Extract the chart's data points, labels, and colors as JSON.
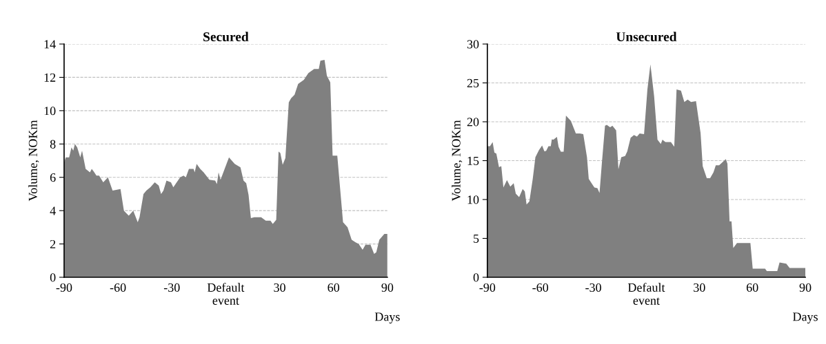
{
  "chart_data": [
    {
      "type": "area",
      "title": "Secured",
      "ylabel": "Volume, NOKm",
      "xlabel": "Days",
      "color": "#808080",
      "grid": "y",
      "xlim": [
        -90,
        90
      ],
      "xticks": [
        -90,
        -60,
        -30,
        {
          "value": 0,
          "label": "Default\nevent"
        },
        30,
        60,
        90
      ],
      "ylim": [
        0,
        14
      ],
      "yticks": [
        0,
        2,
        4,
        6,
        8,
        10,
        12,
        14
      ],
      "x": [
        -90,
        -89.1,
        -87.2,
        -85.9,
        -84.9,
        -84,
        -82.7,
        -81,
        -80,
        -78,
        -75.6,
        -74.6,
        -73.5,
        -72,
        -70.5,
        -68.2,
        -65.6,
        -63,
        -58.6,
        -56.7,
        -54,
        -51.5,
        -49,
        -48,
        -45.8,
        -44.2,
        -42,
        -39.5,
        -37.3,
        -36,
        -34.7,
        -33,
        -30.5,
        -29.2,
        -27.3,
        -25.4,
        -23.5,
        -22.2,
        -20.5,
        -17.9,
        -17.3,
        -16.2,
        -14.2,
        -12.3,
        -9.1,
        -5.9,
        -4.9,
        -4,
        -2.9,
        -0.8,
        1.8,
        5,
        8.2,
        9.9,
        11.4,
        12.7,
        14,
        15.9,
        19.7,
        22.3,
        24.9,
        26.2,
        28.1,
        29.4,
        30.4,
        31.7,
        33.2,
        35.1,
        36.4,
        38.3,
        40.3,
        43.5,
        46,
        49.2,
        51.8,
        52.7,
        55,
        56.3,
        58.2,
        59.5,
        62.1,
        65.3,
        67.8,
        70.1,
        72.3,
        74,
        76.2,
        77.8,
        80.6,
        82.6,
        83.8,
        85.5,
        88.3,
        90
      ],
      "values": [
        6.9,
        7.2,
        7.2,
        7.8,
        7.6,
        8.0,
        7.8,
        7.2,
        7.6,
        6.5,
        6.3,
        6.5,
        6.35,
        6.1,
        6.1,
        5.7,
        6.0,
        5.2,
        5.3,
        4.0,
        3.7,
        4.0,
        3.3,
        3.6,
        5.0,
        5.2,
        5.4,
        5.7,
        5.5,
        5.0,
        5.2,
        5.8,
        5.7,
        5.4,
        5.7,
        6.0,
        6.1,
        6.0,
        6.5,
        6.5,
        6.3,
        6.8,
        6.5,
        6.3,
        5.85,
        5.8,
        5.6,
        6.3,
        5.85,
        6.45,
        7.2,
        6.8,
        6.6,
        5.8,
        5.65,
        4.95,
        3.55,
        3.6,
        3.6,
        3.4,
        3.4,
        3.2,
        3.45,
        7.55,
        7.45,
        6.75,
        7.15,
        10.5,
        10.75,
        10.95,
        11.6,
        11.85,
        12.25,
        12.5,
        12.5,
        13.0,
        13.05,
        12.1,
        11.7,
        7.3,
        7.3,
        3.3,
        3.0,
        2.25,
        2.1,
        2.0,
        1.65,
        1.95,
        1.95,
        1.4,
        1.5,
        2.25,
        2.6,
        2.6
      ]
    },
    {
      "type": "area",
      "title": "Unsecured",
      "ylabel": "Volume, NOKm",
      "xlabel": "Days",
      "color": "#808080",
      "grid": "y",
      "xlim": [
        -90,
        90
      ],
      "xticks": [
        -90,
        -60,
        -30,
        {
          "value": 0,
          "label": "Default\nevent"
        },
        30,
        60,
        90
      ],
      "ylim": [
        0,
        30
      ],
      "yticks": [
        0,
        5,
        10,
        15,
        20,
        25,
        30
      ],
      "x": [
        -90,
        -88.5,
        -87,
        -86,
        -84.9,
        -83.4,
        -82.1,
        -80.9,
        -78.9,
        -77,
        -75.1,
        -73.9,
        -72,
        -70,
        -68.8,
        -67.8,
        -66.2,
        -64.3,
        -62.8,
        -60.8,
        -59,
        -57.7,
        -56.7,
        -55.4,
        -54.1,
        -53.5,
        -52.6,
        -50.6,
        -49.7,
        -48.4,
        -46.8,
        -45.5,
        -42.7,
        -39.9,
        -37.6,
        -35.7,
        -33.6,
        -32.6,
        -30.7,
        -29.4,
        -27.7,
        -26.5,
        -25.2,
        -23.4,
        -22.4,
        -20.5,
        -19.2,
        -17.1,
        -15.8,
        -14.2,
        -12,
        -10.8,
        -8.9,
        -7,
        -5.3,
        -3.8,
        -1.3,
        0.6,
        2.3,
        4.4,
        6.3,
        8.2,
        9.1,
        10.8,
        13.9,
        15.8,
        17.1,
        19.6,
        21.5,
        23.4,
        25.3,
        28.1,
        30.7,
        31.9,
        34.2,
        36.1,
        38,
        39.3,
        41.2,
        43.1,
        45,
        45.9,
        47.1,
        48.2,
        49.2,
        51.3,
        58.9,
        60.2,
        67.2,
        68.2,
        74.1,
        75.4,
        79.2,
        81.1,
        90
      ],
      "values": [
        16.85,
        16.85,
        17.4,
        16.05,
        15.9,
        14.15,
        14.3,
        11.55,
        12.5,
        11.65,
        12.1,
        10.75,
        10.3,
        11.35,
        11.05,
        9.35,
        9.75,
        12.65,
        15.45,
        16.35,
        16.95,
        16.2,
        16.25,
        16.85,
        16.85,
        17.75,
        17.7,
        18.05,
        16.8,
        16.15,
        16.15,
        20.8,
        20.1,
        18.5,
        18.5,
        18.4,
        15.45,
        12.65,
        12.0,
        11.55,
        11.45,
        10.85,
        14.6,
        19.5,
        19.6,
        19.3,
        19.5,
        18.9,
        13.9,
        15.45,
        15.6,
        16.2,
        17.95,
        18.3,
        18.1,
        18.5,
        18.4,
        24.15,
        27.4,
        23.3,
        17.7,
        17.15,
        17.7,
        17.4,
        17.4,
        16.8,
        24.15,
        24.0,
        22.55,
        22.85,
        22.55,
        22.65,
        18.55,
        14.3,
        12.75,
        12.75,
        13.5,
        14.4,
        14.4,
        14.8,
        15.2,
        14.6,
        7.2,
        7.2,
        3.75,
        4.4,
        4.4,
        1.1,
        1.1,
        0.8,
        0.8,
        1.9,
        1.75,
        1.2,
        1.2
      ]
    }
  ]
}
